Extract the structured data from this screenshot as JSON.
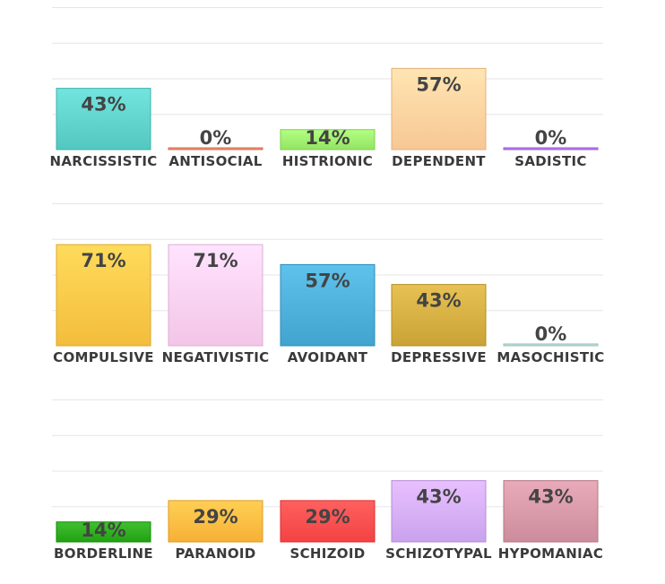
{
  "chart_data": [
    {
      "type": "bar",
      "categories": [
        "NARCISSISTIC",
        "ANTISOCIAL",
        "HISTRIONIC",
        "DEPENDENT",
        "SADISTIC"
      ],
      "values": [
        43,
        0,
        14,
        57,
        0
      ],
      "labels": [
        "43%",
        "0%",
        "14%",
        "57%",
        "0%"
      ],
      "colors": [
        "#5ccfc8",
        "#f08a70",
        "#9cec6c",
        "#ffcf9c",
        "#b678f0"
      ],
      "ylim": [
        0,
        100
      ],
      "grid": true
    },
    {
      "type": "bar",
      "categories": [
        "COMPULSIVE",
        "NEGATIVISTIC",
        "AVOIDANT",
        "DEPRESSIVE",
        "MASOCHISTIC"
      ],
      "values": [
        71,
        71,
        57,
        43,
        0
      ],
      "labels": [
        "71%",
        "71%",
        "57%",
        "43%",
        "0%"
      ],
      "colors": [
        "#fbc545",
        "#fbcdee",
        "#48acd6",
        "#d1ab3e",
        "#b8dcd6"
      ],
      "ylim": [
        0,
        100
      ],
      "grid": true
    },
    {
      "type": "bar",
      "categories": [
        "BORDERLINE",
        "PARANOID",
        "SCHIZOID",
        "SCHIZOTYPAL",
        "HYPOMANIAC"
      ],
      "values": [
        14,
        29,
        29,
        43,
        43
      ],
      "labels": [
        "14%",
        "29%",
        "29%",
        "43%",
        "43%"
      ],
      "colors": [
        "#2aaa1a",
        "#fdb93e",
        "#fb4a4a",
        "#d2aaf5",
        "#d394a4"
      ],
      "ylim": [
        0,
        100
      ],
      "grid": true
    }
  ]
}
